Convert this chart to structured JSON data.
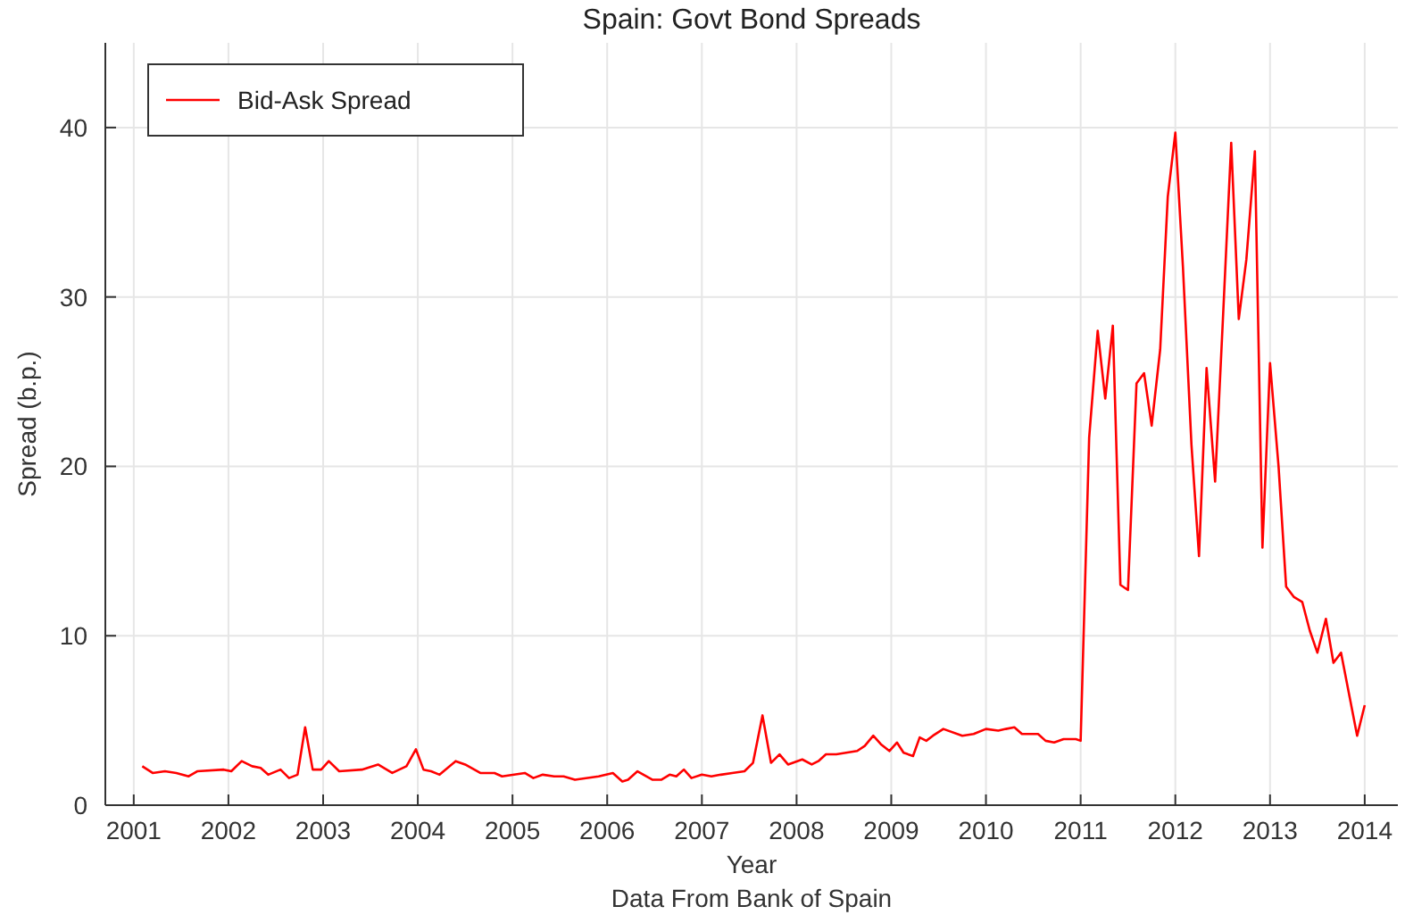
{
  "chart_data": {
    "type": "line",
    "title": "Spain: Govt Bond Spreads",
    "xlabel": "Year",
    "ylabel": "Spread (b.p.)",
    "annotations": [
      "Data From Bank of Spain"
    ],
    "x": [
      2001.09,
      2001.2,
      2001.33,
      2001.45,
      2001.58,
      2001.67,
      2001.95,
      2002.03,
      2002.14,
      2002.25,
      2002.34,
      2002.42,
      2002.55,
      2002.64,
      2002.73,
      2002.81,
      2002.89,
      2002.98,
      2003.06,
      2003.17,
      2003.41,
      2003.58,
      2003.73,
      2003.88,
      2003.98,
      2004.06,
      2004.14,
      2004.23,
      2004.4,
      2004.5,
      2004.66,
      2004.81,
      2004.89,
      2005.13,
      2005.22,
      2005.32,
      2005.44,
      2005.54,
      2005.66,
      2005.91,
      2006.06,
      2006.16,
      2006.22,
      2006.32,
      2006.48,
      2006.57,
      2006.66,
      2006.73,
      2006.81,
      2006.89,
      2007.0,
      2007.1,
      2007.2,
      2007.32,
      2007.45,
      2007.54,
      2007.64,
      2007.73,
      2007.82,
      2007.91,
      2008.06,
      2008.16,
      2008.23,
      2008.31,
      2008.42,
      2008.64,
      2008.72,
      2008.81,
      2008.89,
      2008.98,
      2009.06,
      2009.13,
      2009.23,
      2009.3,
      2009.37,
      2009.44,
      2009.55,
      2009.75,
      2009.87,
      2010.0,
      2010.13,
      2010.21,
      2010.3,
      2010.38,
      2010.55,
      2010.63,
      2010.72,
      2010.82,
      2010.95,
      2011.0,
      2011.09,
      2011.18,
      2011.26,
      2011.34,
      2011.42,
      2011.5,
      2011.59,
      2011.67,
      2011.75,
      2011.84,
      2011.92,
      2012.0,
      2012.08,
      2012.17,
      2012.25,
      2012.33,
      2012.42,
      2012.5,
      2012.59,
      2012.67,
      2012.75,
      2012.84,
      2012.92,
      2013.0,
      2013.09,
      2013.17,
      2013.25,
      2013.34,
      2013.42,
      2013.5,
      2013.59,
      2013.67,
      2013.75,
      2013.84,
      2013.92,
      2014.0
    ],
    "series": [
      {
        "name": "Bid-Ask Spread",
        "color": "#ff0000",
        "values": [
          2.3,
          1.9,
          2.0,
          1.9,
          1.7,
          2.0,
          2.1,
          2.0,
          2.6,
          2.3,
          2.2,
          1.8,
          2.1,
          1.6,
          1.8,
          4.6,
          2.1,
          2.1,
          2.6,
          2.0,
          2.1,
          2.4,
          1.9,
          2.3,
          3.3,
          2.1,
          2.0,
          1.8,
          2.6,
          2.4,
          1.9,
          1.9,
          1.7,
          1.9,
          1.6,
          1.8,
          1.7,
          1.7,
          1.5,
          1.7,
          1.9,
          1.4,
          1.5,
          2.0,
          1.5,
          1.5,
          1.8,
          1.7,
          2.1,
          1.6,
          1.8,
          1.7,
          1.8,
          1.9,
          2.0,
          2.5,
          5.3,
          2.5,
          3.0,
          2.4,
          2.7,
          2.4,
          2.6,
          3.0,
          3.0,
          3.2,
          3.5,
          4.1,
          3.6,
          3.2,
          3.7,
          3.1,
          2.9,
          4.0,
          3.8,
          4.1,
          4.5,
          4.1,
          4.2,
          4.5,
          4.4,
          4.5,
          4.6,
          4.2,
          4.2,
          3.8,
          3.7,
          3.9,
          3.9,
          3.8,
          21.7,
          28.0,
          24.0,
          28.3,
          13.0,
          12.7,
          24.9,
          25.5,
          22.4,
          26.9,
          35.9,
          39.7,
          31.8,
          21.3,
          14.7,
          25.8,
          19.1,
          28.4,
          39.1,
          28.7,
          32.2,
          38.6,
          15.2,
          26.1,
          20.0,
          12.9,
          12.3,
          12.0,
          10.3,
          9.0,
          11.0,
          8.4,
          9.0,
          6.4,
          4.1,
          5.9
        ]
      }
    ],
    "xlim": [
      2000.7,
      2014.35
    ],
    "xticks": [
      2001,
      2002,
      2003,
      2004,
      2005,
      2006,
      2007,
      2008,
      2009,
      2010,
      2011,
      2012,
      2013,
      2014
    ],
    "ylim": [
      0,
      45
    ],
    "yticks": [
      0,
      10,
      20,
      30,
      40
    ],
    "grid": true,
    "legend": "top left",
    "line_style": "solid"
  }
}
